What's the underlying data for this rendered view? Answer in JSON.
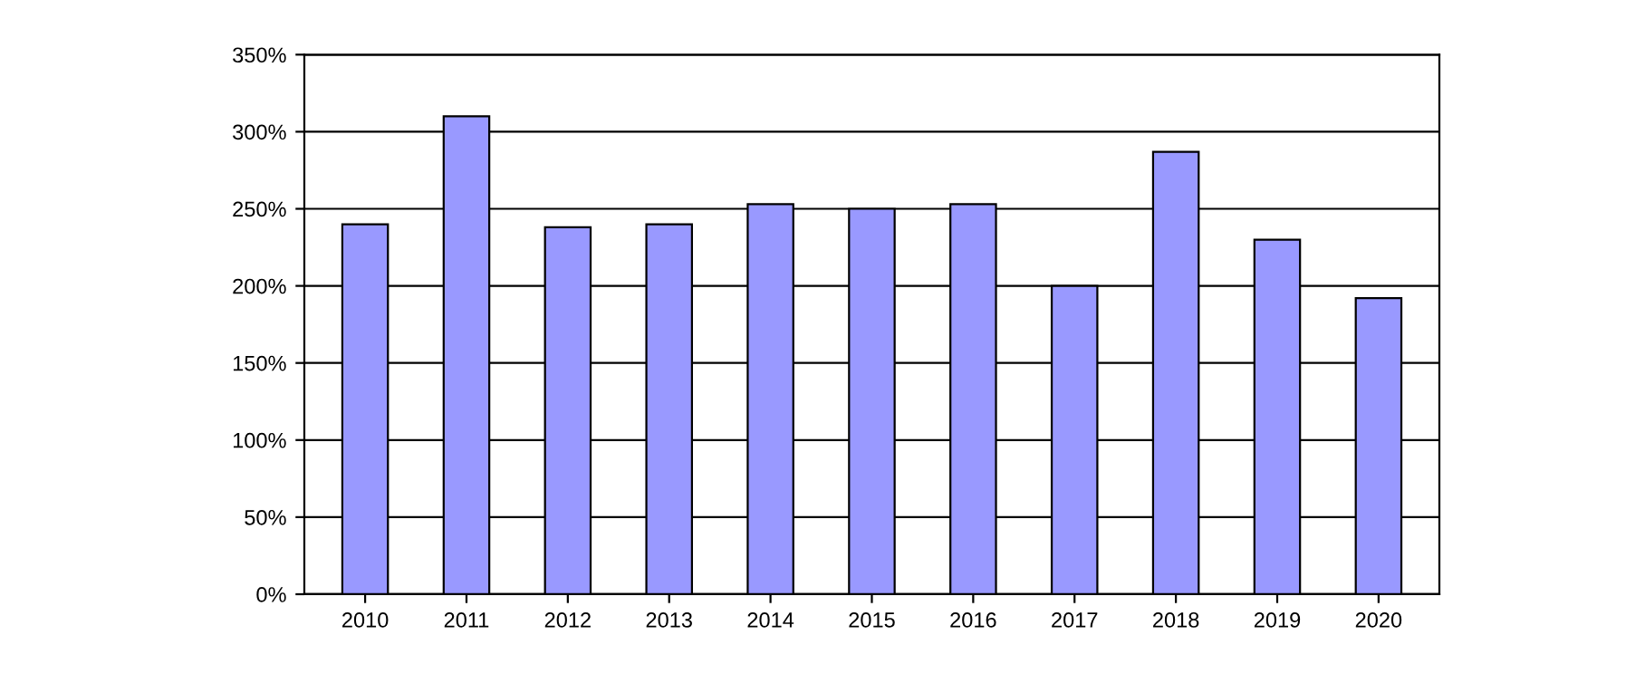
{
  "chart_data": {
    "type": "bar",
    "categories": [
      "2010",
      "2011",
      "2012",
      "2013",
      "2014",
      "2015",
      "2016",
      "2017",
      "2018",
      "2019",
      "2020"
    ],
    "values": [
      240,
      310,
      238,
      240,
      253,
      250,
      253,
      200,
      287,
      230,
      192
    ],
    "color": "#9999ff",
    "ylim": [
      0,
      350
    ],
    "yticks": [
      {
        "value": 0,
        "label": "0%"
      },
      {
        "value": 50,
        "label": "50%"
      },
      {
        "value": 100,
        "label": "100%"
      },
      {
        "value": 150,
        "label": "150%"
      },
      {
        "value": 200,
        "label": "200%"
      },
      {
        "value": 250,
        "label": "250%"
      },
      {
        "value": 300,
        "label": "300%"
      },
      {
        "value": 350,
        "label": "350%"
      }
    ],
    "grid": "y"
  }
}
